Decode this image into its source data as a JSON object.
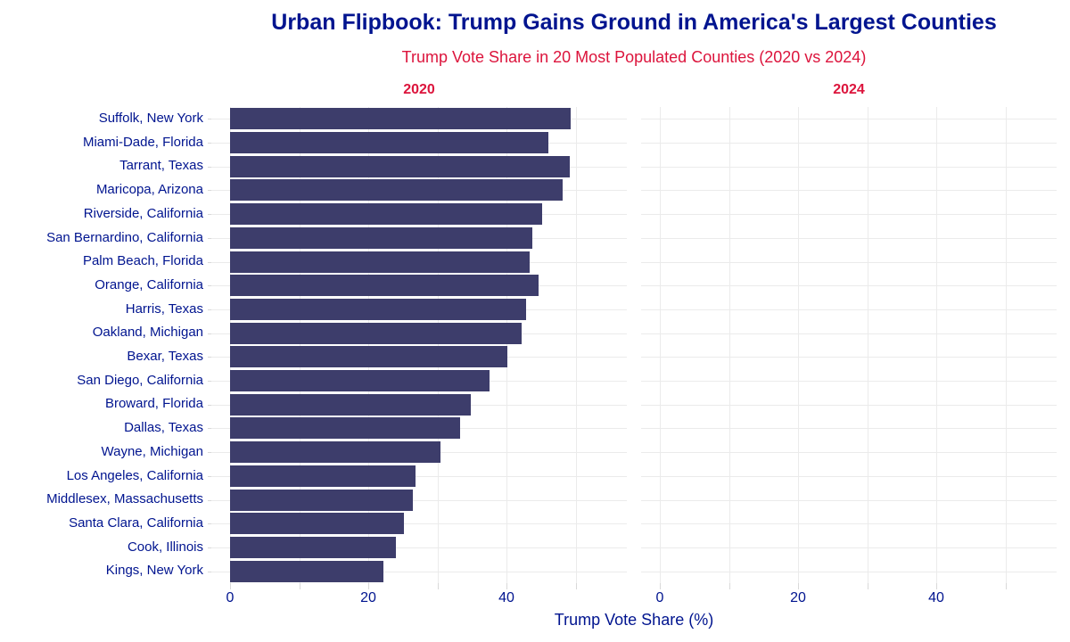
{
  "chart_data": {
    "type": "bar",
    "orientation": "horizontal",
    "title": "Urban Flipbook: Trump Gains Ground in America's Largest Counties",
    "subtitle": "Trump Vote Share in 20 Most Populated Counties (2020 vs 2024)",
    "xlabel": "Trump Vote Share (%)",
    "ylabel": "",
    "legend": "none",
    "grid": true,
    "categories": [
      "Suffolk, New York",
      "Miami-Dade, Florida",
      "Tarrant, Texas",
      "Maricopa, Arizona",
      "Riverside, California",
      "San Bernardino, California",
      "Palm Beach, Florida",
      "Orange, California",
      "Harris, Texas",
      "Oakland, Michigan",
      "Bexar, Texas",
      "San Diego, California",
      "Broward, Florida",
      "Dallas, Texas",
      "Wayne, Michigan",
      "Los Angeles, California",
      "Middlesex, Massachusetts",
      "Santa Clara, California",
      "Cook, Illinois",
      "Kings, New York"
    ],
    "facets": [
      {
        "label": "2020",
        "values": [
          49.3,
          46.0,
          49.2,
          48.1,
          45.1,
          43.7,
          43.3,
          44.6,
          42.8,
          42.2,
          40.1,
          37.5,
          34.8,
          33.3,
          30.4,
          26.8,
          26.4,
          25.2,
          24.0,
          22.2
        ]
      },
      {
        "label": "2024",
        "values": null
      }
    ],
    "xlim": [
      0,
      57.4
    ],
    "x_tick_labels": [
      0,
      20,
      40
    ],
    "x_gridline_step": 10,
    "colors": {
      "bar": "#3d3d6b",
      "title": "#00148f",
      "subtitle": "#dc143c",
      "facet_label": "#dc143c",
      "axis_text": "#00148f",
      "gridline": "#ebebeb",
      "tick_mark": "#d9d9d9",
      "background": "#ffffff"
    }
  }
}
